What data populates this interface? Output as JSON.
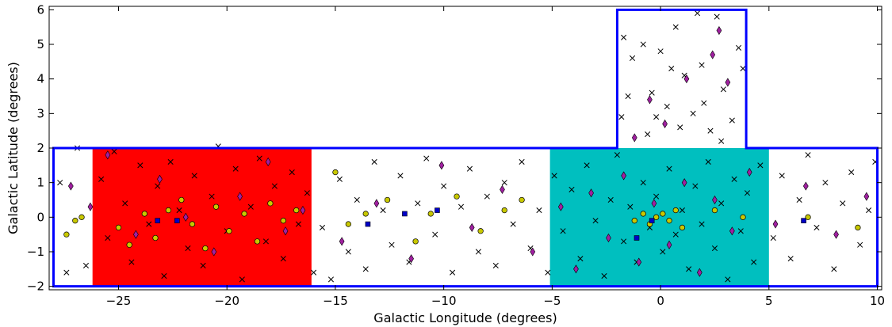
{
  "chart_data": {
    "type": "scatter",
    "title": "",
    "xlabel": "Galactic Longitude (degrees)",
    "ylabel": "Galactic Latitude (degrees)",
    "xlim": [
      -28.2,
      10.2
    ],
    "ylim": [
      -2.1,
      6.1
    ],
    "x_reversed": false,
    "xticks": [
      -25,
      -20,
      -15,
      -10,
      -5,
      0,
      5,
      10
    ],
    "xtick_labels": [
      "−25",
      "−20",
      "−15",
      "−10",
      "−5",
      "0",
      "5",
      "10"
    ],
    "yticks": [
      -2,
      -1,
      0,
      1,
      2,
      3,
      4,
      5,
      6
    ],
    "ytick_labels": [
      "−2",
      "−1",
      "0",
      "1",
      "2",
      "3",
      "4",
      "5",
      "6"
    ],
    "grid": false,
    "regions": [
      {
        "name": "red-region",
        "color": "#ff0000",
        "l_range": [
          -26.2,
          -16.1
        ],
        "b_range": [
          -2,
          2
        ]
      },
      {
        "name": "cyan-region",
        "color": "#00bfbf",
        "l_range": [
          -5.1,
          5.0
        ],
        "b_range": [
          -2,
          2
        ]
      }
    ],
    "outline": {
      "color": "#0000ff",
      "polygon": [
        [
          -28.0,
          -2.0
        ],
        [
          10.0,
          -2.0
        ],
        [
          10.0,
          2.0
        ],
        [
          3.95,
          2.0
        ],
        [
          3.95,
          6.0
        ],
        [
          -2.0,
          6.0
        ],
        [
          -2.0,
          2.0
        ],
        [
          -28.0,
          2.0
        ]
      ]
    },
    "series": [
      {
        "marker": "cross",
        "color": "#000000",
        "points": [
          [
            -27.7,
            1.0
          ],
          [
            -27.4,
            -1.6
          ],
          [
            -26.9,
            2.0
          ],
          [
            -26.5,
            -1.4
          ],
          [
            -25.8,
            1.1
          ],
          [
            -25.5,
            -0.6
          ],
          [
            -25.2,
            1.9
          ],
          [
            -24.7,
            0.4
          ],
          [
            -24.4,
            -1.3
          ],
          [
            -24.0,
            1.5
          ],
          [
            -23.6,
            -0.2
          ],
          [
            -23.2,
            0.9
          ],
          [
            -22.9,
            -1.7
          ],
          [
            -22.6,
            1.6
          ],
          [
            -22.2,
            0.2
          ],
          [
            -21.8,
            -0.9
          ],
          [
            -21.5,
            1.2
          ],
          [
            -21.1,
            -1.4
          ],
          [
            -20.7,
            0.6
          ],
          [
            -20.4,
            2.05
          ],
          [
            -20.0,
            -0.4
          ],
          [
            -19.6,
            1.4
          ],
          [
            -19.3,
            -1.8
          ],
          [
            -18.9,
            0.3
          ],
          [
            -18.5,
            1.7
          ],
          [
            -18.2,
            -0.7
          ],
          [
            -17.8,
            0.9
          ],
          [
            -17.4,
            -1.2
          ],
          [
            -17.0,
            1.3
          ],
          [
            -16.7,
            -0.2
          ],
          [
            -16.3,
            0.7
          ],
          [
            -16.0,
            -1.6
          ],
          [
            -15.6,
            -0.3
          ],
          [
            -15.2,
            -1.8
          ],
          [
            -14.8,
            1.1
          ],
          [
            -14.4,
            -1.0
          ],
          [
            -14.0,
            0.5
          ],
          [
            -13.6,
            -1.5
          ],
          [
            -13.2,
            1.6
          ],
          [
            -12.8,
            0.2
          ],
          [
            -12.4,
            -0.8
          ],
          [
            -12.0,
            1.2
          ],
          [
            -11.6,
            -1.3
          ],
          [
            -11.2,
            0.4
          ],
          [
            -10.8,
            1.7
          ],
          [
            -10.4,
            -0.5
          ],
          [
            -10.0,
            0.9
          ],
          [
            -9.6,
            -1.6
          ],
          [
            -9.2,
            0.3
          ],
          [
            -8.8,
            1.4
          ],
          [
            -8.4,
            -1.0
          ],
          [
            -8.0,
            0.6
          ],
          [
            -7.6,
            -1.4
          ],
          [
            -7.2,
            1.0
          ],
          [
            -6.8,
            -0.2
          ],
          [
            -6.4,
            1.6
          ],
          [
            -6.0,
            -0.9
          ],
          [
            -5.6,
            0.2
          ],
          [
            -5.2,
            -1.6
          ],
          [
            -4.9,
            1.2
          ],
          [
            -4.5,
            -0.4
          ],
          [
            -4.1,
            0.8
          ],
          [
            -3.7,
            -1.2
          ],
          [
            -3.4,
            1.5
          ],
          [
            -3.0,
            -0.1
          ],
          [
            -2.6,
            -1.7
          ],
          [
            -2.3,
            0.5
          ],
          [
            -2.0,
            1.8
          ],
          [
            -1.7,
            -0.7
          ],
          [
            -1.4,
            0.3
          ],
          [
            -1.1,
            -1.3
          ],
          [
            -0.8,
            1.0
          ],
          [
            -0.5,
            -0.3
          ],
          [
            -0.2,
            0.6
          ],
          [
            0.1,
            -1.0
          ],
          [
            0.4,
            1.4
          ],
          [
            0.7,
            -0.5
          ],
          [
            1.0,
            0.2
          ],
          [
            1.3,
            -1.5
          ],
          [
            1.6,
            0.9
          ],
          [
            1.9,
            -0.2
          ],
          [
            2.2,
            1.6
          ],
          [
            2.5,
            -0.9
          ],
          [
            2.8,
            0.4
          ],
          [
            3.1,
            -1.8
          ],
          [
            3.4,
            1.1
          ],
          [
            3.7,
            -0.4
          ],
          [
            4.0,
            0.7
          ],
          [
            4.3,
            -1.3
          ],
          [
            4.6,
            1.5
          ],
          [
            5.2,
            -0.6
          ],
          [
            5.6,
            1.2
          ],
          [
            6.0,
            -1.2
          ],
          [
            6.4,
            0.5
          ],
          [
            6.8,
            1.8
          ],
          [
            7.2,
            -0.3
          ],
          [
            7.6,
            1.0
          ],
          [
            8.0,
            -1.5
          ],
          [
            8.4,
            0.4
          ],
          [
            8.8,
            1.3
          ],
          [
            9.2,
            -0.8
          ],
          [
            9.6,
            0.2
          ],
          [
            9.9,
            1.6
          ],
          [
            -1.7,
            5.2
          ],
          [
            -1.3,
            4.6
          ],
          [
            -0.8,
            5.0
          ],
          [
            -0.4,
            3.6
          ],
          [
            0.0,
            4.8
          ],
          [
            0.3,
            3.2
          ],
          [
            0.7,
            5.5
          ],
          [
            1.1,
            4.1
          ],
          [
            1.5,
            3.0
          ],
          [
            1.9,
            4.4
          ],
          [
            2.3,
            2.5
          ],
          [
            2.6,
            5.8
          ],
          [
            2.9,
            3.7
          ],
          [
            3.3,
            2.8
          ],
          [
            3.6,
            4.9
          ],
          [
            -1.5,
            3.5
          ],
          [
            -0.6,
            2.4
          ],
          [
            0.9,
            2.6
          ],
          [
            2.0,
            3.3
          ],
          [
            3.8,
            4.3
          ],
          [
            -1.8,
            2.9
          ],
          [
            0.5,
            4.3
          ],
          [
            1.7,
            5.9
          ],
          [
            -0.2,
            2.9
          ],
          [
            2.8,
            2.2
          ]
        ]
      },
      {
        "marker": "diamond",
        "color": "#a020a0",
        "points": [
          [
            -27.2,
            0.9
          ],
          [
            -26.3,
            0.3
          ],
          [
            -25.5,
            1.8
          ],
          [
            -24.2,
            -0.5
          ],
          [
            -23.1,
            1.1
          ],
          [
            -21.9,
            0.0
          ],
          [
            -20.6,
            -1.0
          ],
          [
            -19.4,
            0.6
          ],
          [
            -18.1,
            1.6
          ],
          [
            -17.3,
            -0.4
          ],
          [
            -16.5,
            0.2
          ],
          [
            -14.7,
            -0.7
          ],
          [
            -13.1,
            0.4
          ],
          [
            -11.5,
            -1.2
          ],
          [
            -10.1,
            1.5
          ],
          [
            -8.7,
            -0.3
          ],
          [
            -7.3,
            0.8
          ],
          [
            -5.9,
            -1.0
          ],
          [
            -4.6,
            0.3
          ],
          [
            -3.9,
            -1.5
          ],
          [
            -3.2,
            0.7
          ],
          [
            -2.4,
            -0.6
          ],
          [
            -1.7,
            1.2
          ],
          [
            -1.0,
            -1.3
          ],
          [
            -0.3,
            0.4
          ],
          [
            0.4,
            -0.8
          ],
          [
            1.1,
            1.0
          ],
          [
            1.8,
            -1.6
          ],
          [
            2.5,
            0.5
          ],
          [
            3.3,
            -0.4
          ],
          [
            4.1,
            1.3
          ],
          [
            5.3,
            -0.2
          ],
          [
            6.7,
            0.9
          ],
          [
            8.1,
            -0.5
          ],
          [
            9.5,
            0.6
          ],
          [
            -0.5,
            3.4
          ],
          [
            1.2,
            4.0
          ],
          [
            2.4,
            4.7
          ],
          [
            3.1,
            3.9
          ],
          [
            0.2,
            2.7
          ],
          [
            -1.2,
            2.3
          ],
          [
            2.7,
            5.4
          ]
        ]
      },
      {
        "marker": "circle",
        "color": "#c8c800",
        "points": [
          [
            -27.4,
            -0.5
          ],
          [
            -27.0,
            -0.1
          ],
          [
            -26.7,
            0.0
          ],
          [
            -25.0,
            -0.3
          ],
          [
            -24.5,
            -0.8
          ],
          [
            -23.8,
            0.1
          ],
          [
            -23.3,
            -0.6
          ],
          [
            -22.7,
            0.2
          ],
          [
            -22.1,
            0.5
          ],
          [
            -21.6,
            -0.2
          ],
          [
            -21.0,
            -0.9
          ],
          [
            -20.5,
            0.3
          ],
          [
            -19.9,
            -0.4
          ],
          [
            -19.2,
            0.1
          ],
          [
            -18.6,
            -0.7
          ],
          [
            -18.0,
            0.4
          ],
          [
            -17.4,
            -0.1
          ],
          [
            -16.8,
            0.2
          ],
          [
            -15.0,
            1.3
          ],
          [
            -14.4,
            -0.2
          ],
          [
            -13.6,
            0.1
          ],
          [
            -12.6,
            0.5
          ],
          [
            -11.3,
            -0.7
          ],
          [
            -10.6,
            0.1
          ],
          [
            -9.4,
            0.6
          ],
          [
            -8.3,
            -0.4
          ],
          [
            -7.2,
            0.2
          ],
          [
            -6.4,
            0.5
          ],
          [
            -1.2,
            -0.1
          ],
          [
            -0.8,
            0.1
          ],
          [
            -0.5,
            -0.2
          ],
          [
            -0.2,
            0.0
          ],
          [
            0.1,
            0.1
          ],
          [
            0.4,
            -0.1
          ],
          [
            0.7,
            0.2
          ],
          [
            1.0,
            -0.3
          ],
          [
            2.5,
            0.2
          ],
          [
            3.8,
            0.0
          ],
          [
            6.8,
            0.0
          ],
          [
            9.1,
            -0.3
          ]
        ]
      },
      {
        "marker": "square",
        "color": "#0000c8",
        "points": [
          [
            -23.2,
            -0.1
          ],
          [
            -22.3,
            -0.1
          ],
          [
            -13.5,
            -0.2
          ],
          [
            -11.8,
            0.1
          ],
          [
            -10.3,
            0.2
          ],
          [
            -1.1,
            -0.6
          ],
          [
            -0.4,
            -0.1
          ],
          [
            6.6,
            -0.1
          ]
        ]
      }
    ]
  }
}
